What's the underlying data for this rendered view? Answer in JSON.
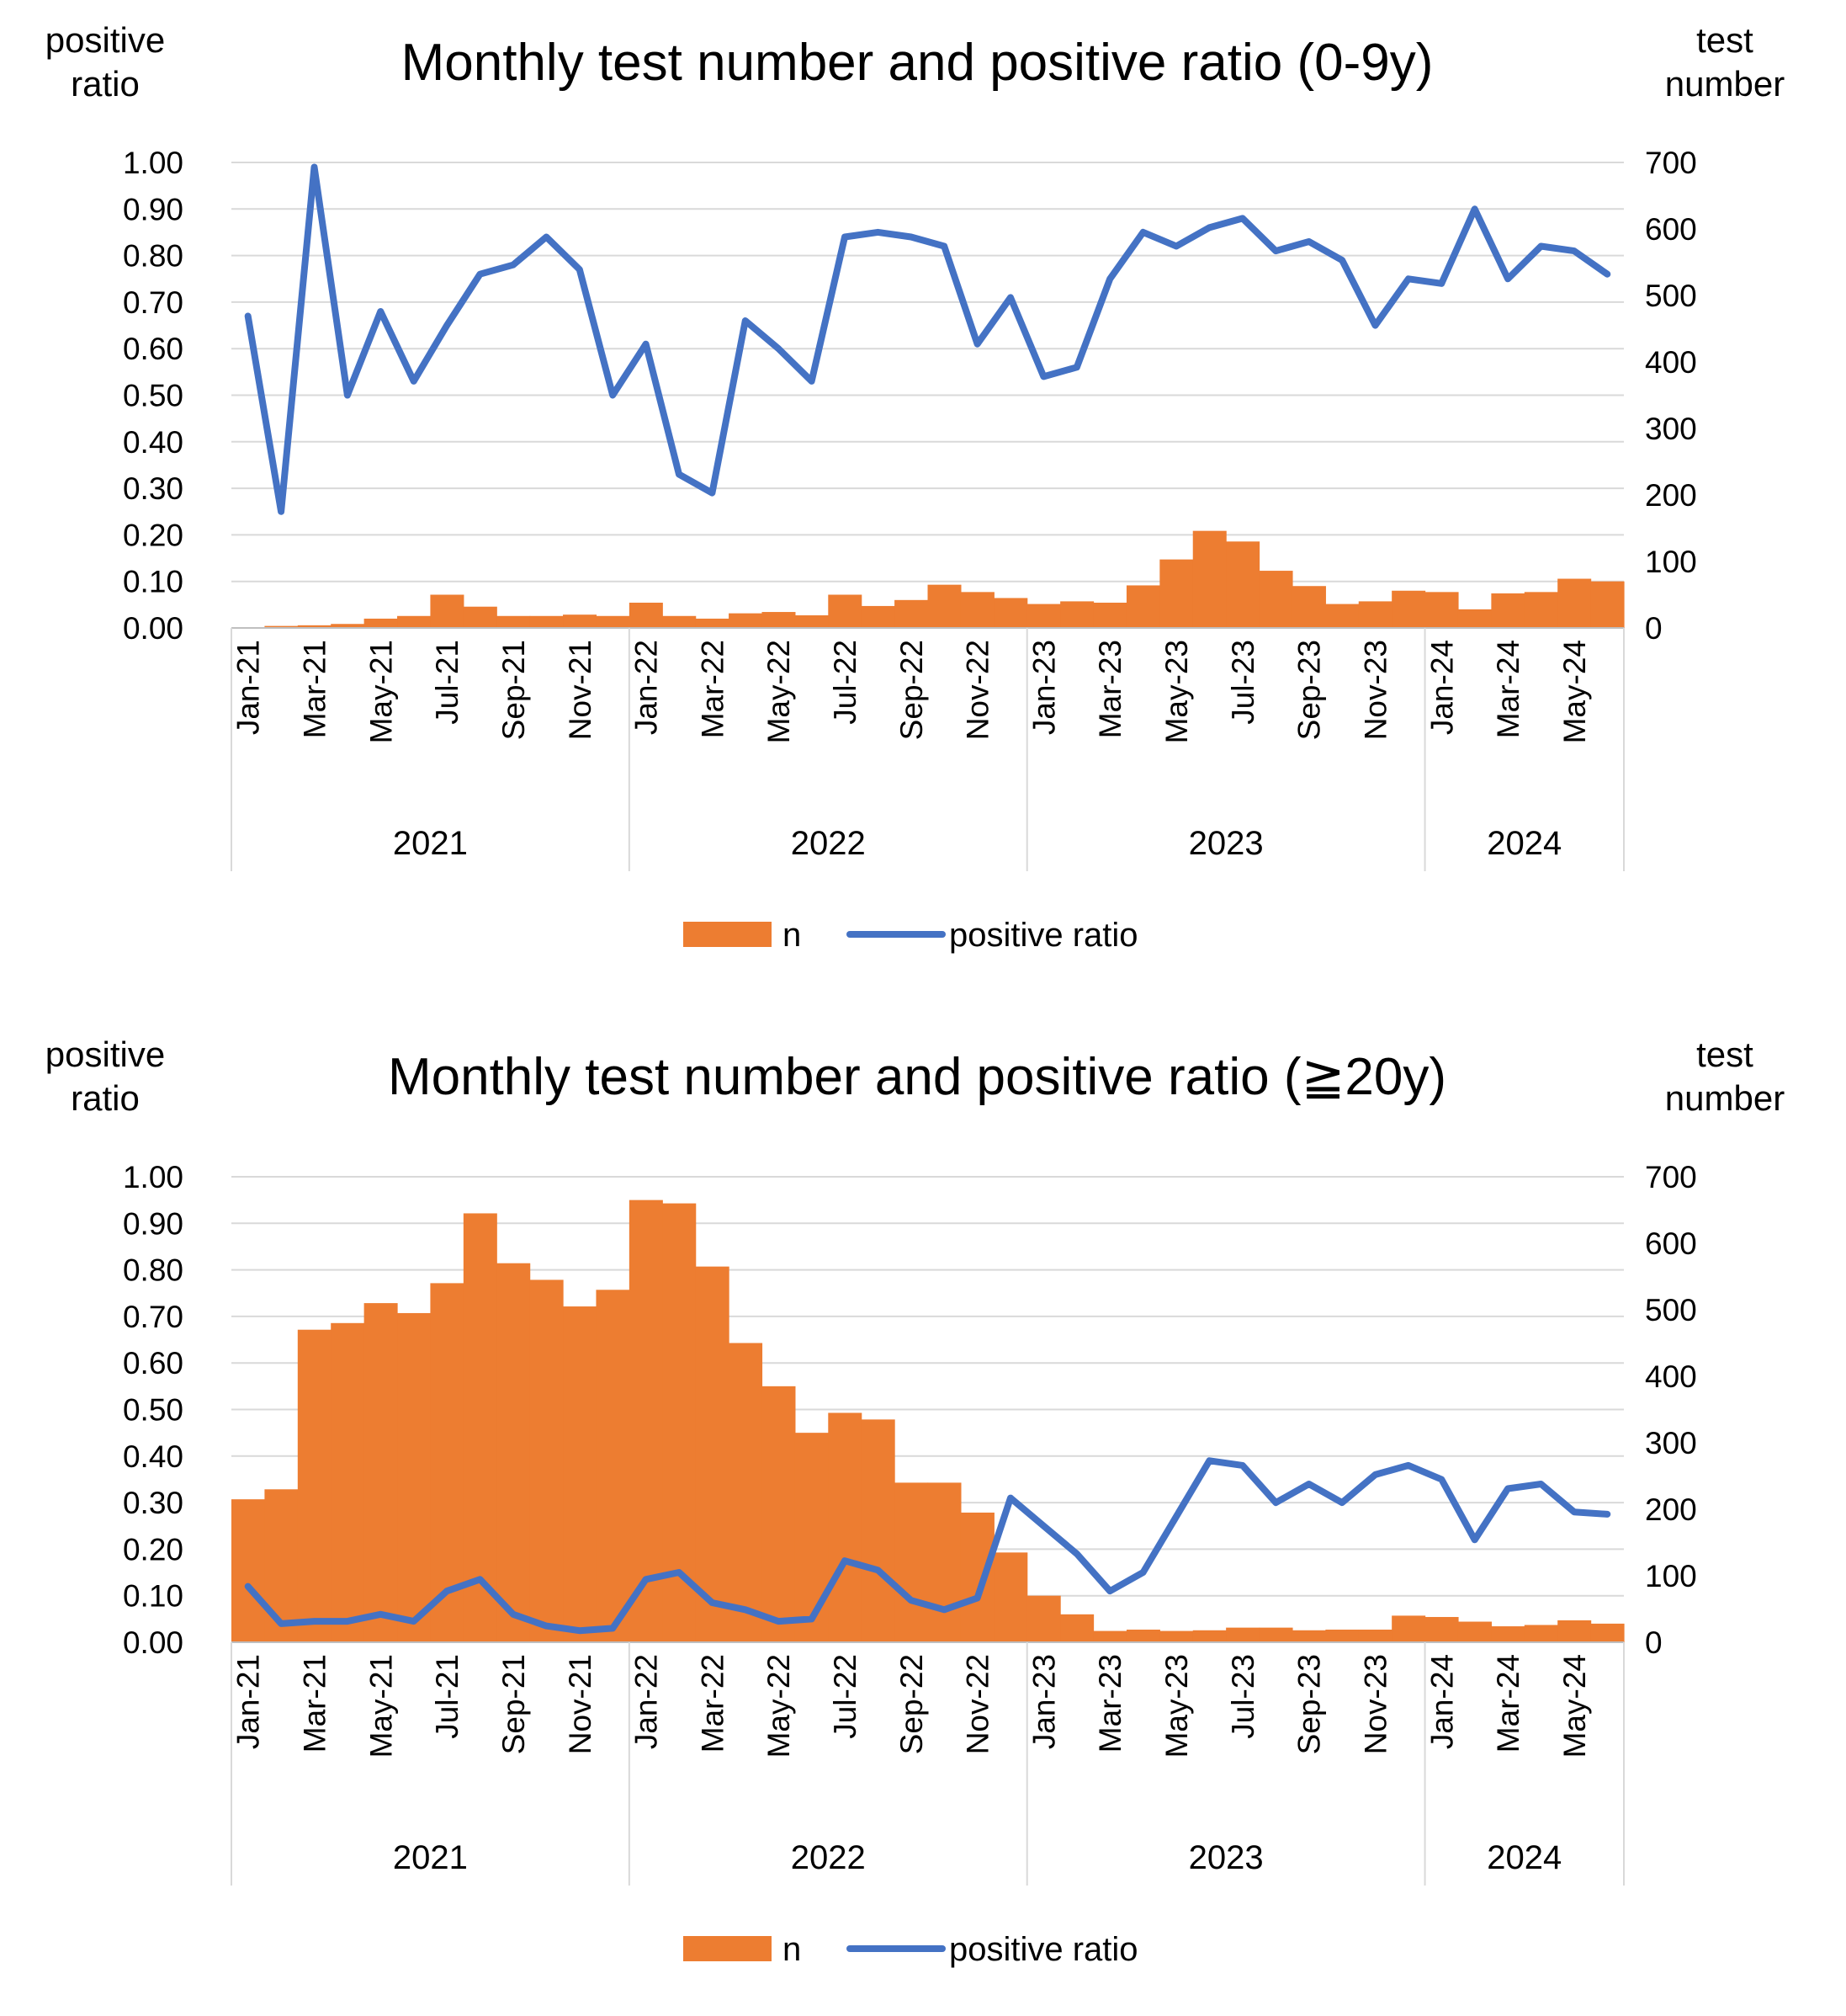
{
  "chart_data": [
    {
      "type": "bar+line",
      "title": "Monthly test number and positive ratio (0-9y)",
      "left_axis_label": [
        "positive",
        "ratio"
      ],
      "right_axis_label": [
        "test",
        "number"
      ],
      "left_ylim": [
        0,
        1
      ],
      "right_ylim": [
        0,
        700
      ],
      "left_ticks": [
        "0.00",
        "0.10",
        "0.20",
        "0.30",
        "0.40",
        "0.50",
        "0.60",
        "0.70",
        "0.80",
        "0.90",
        "1.00"
      ],
      "right_ticks": [
        "0",
        "100",
        "200",
        "300",
        "400",
        "500",
        "600",
        "700"
      ],
      "months": [
        "Jan-21",
        "Feb-21",
        "Mar-21",
        "Apr-21",
        "May-21",
        "Jun-21",
        "Jul-21",
        "Aug-21",
        "Sep-21",
        "Oct-21",
        "Nov-21",
        "Dec-21",
        "Jan-22",
        "Feb-22",
        "Mar-22",
        "Apr-22",
        "May-22",
        "Jun-22",
        "Jul-22",
        "Aug-22",
        "Sep-22",
        "Oct-22",
        "Nov-22",
        "Dec-22",
        "Jan-23",
        "Feb-23",
        "Mar-23",
        "Apr-23",
        "May-23",
        "Jun-23",
        "Jul-23",
        "Aug-23",
        "Sep-23",
        "Oct-23",
        "Nov-23",
        "Dec-23",
        "Jan-24",
        "Feb-24",
        "Mar-24",
        "Apr-24",
        "May-24",
        "Jun-24"
      ],
      "month_labels": [
        "Jan-21",
        "Mar-21",
        "May-21",
        "Jul-21",
        "Sep-21",
        "Nov-21",
        "Jan-22",
        "Mar-22",
        "May-22",
        "Jul-22",
        "Sep-22",
        "Nov-22",
        "Jan-23",
        "Mar-23",
        "May-23",
        "Jul-23",
        "Sep-23",
        "Nov-23",
        "Jan-24",
        "Mar-24",
        "May-24"
      ],
      "years": [
        {
          "label": "2021",
          "count": 12
        },
        {
          "label": "2022",
          "count": 12
        },
        {
          "label": "2023",
          "count": 12
        },
        {
          "label": "2024",
          "count": 6
        }
      ],
      "series": [
        {
          "name": "n",
          "kind": "bar",
          "color": "#ED7D31",
          "values": [
            1,
            3,
            4,
            6,
            14,
            18,
            50,
            32,
            18,
            18,
            20,
            18,
            38,
            18,
            14,
            22,
            24,
            19,
            50,
            33,
            42,
            65,
            54,
            45,
            36,
            40,
            38,
            64,
            103,
            146,
            130,
            86,
            63,
            36,
            40,
            56,
            54,
            28,
            52,
            54,
            74,
            70
          ]
        },
        {
          "name": "positive ratio",
          "kind": "line",
          "color": "#4472C4",
          "values": [
            0.67,
            0.25,
            0.99,
            0.5,
            0.68,
            0.53,
            0.65,
            0.76,
            0.78,
            0.84,
            0.77,
            0.5,
            0.61,
            0.33,
            0.29,
            0.66,
            0.6,
            0.53,
            0.84,
            0.85,
            0.84,
            0.82,
            0.61,
            0.71,
            0.54,
            0.56,
            0.75,
            0.85,
            0.82,
            0.86,
            0.88,
            0.81,
            0.83,
            0.79,
            0.65,
            0.75,
            0.74,
            0.9,
            0.75,
            0.82,
            0.81,
            0.76
          ]
        }
      ],
      "legend": [
        {
          "label": "n",
          "color": "#ED7D31",
          "kind": "bar"
        },
        {
          "label": "positive ratio",
          "color": "#4472C4",
          "kind": "line"
        }
      ],
      "grid": true,
      "legend_position": "bottom-center"
    },
    {
      "type": "bar+line",
      "title": "Monthly test number and positive ratio (≧20y)",
      "left_axis_label": [
        "positive",
        "ratio"
      ],
      "right_axis_label": [
        "test",
        "number"
      ],
      "left_ylim": [
        0,
        1
      ],
      "right_ylim": [
        0,
        700
      ],
      "left_ticks": [
        "0.00",
        "0.10",
        "0.20",
        "0.30",
        "0.40",
        "0.50",
        "0.60",
        "0.70",
        "0.80",
        "0.90",
        "1.00"
      ],
      "right_ticks": [
        "0",
        "100",
        "200",
        "300",
        "400",
        "500",
        "600",
        "700"
      ],
      "months": [
        "Jan-21",
        "Feb-21",
        "Mar-21",
        "Apr-21",
        "May-21",
        "Jun-21",
        "Jul-21",
        "Aug-21",
        "Sep-21",
        "Oct-21",
        "Nov-21",
        "Dec-21",
        "Jan-22",
        "Feb-22",
        "Mar-22",
        "Apr-22",
        "May-22",
        "Jun-22",
        "Jul-22",
        "Aug-22",
        "Sep-22",
        "Oct-22",
        "Nov-22",
        "Dec-22",
        "Jan-23",
        "Feb-23",
        "Mar-23",
        "Apr-23",
        "May-23",
        "Jun-23",
        "Jul-23",
        "Aug-23",
        "Sep-23",
        "Oct-23",
        "Nov-23",
        "Dec-23",
        "Jan-24",
        "Feb-24",
        "Mar-24",
        "Apr-24",
        "May-24",
        "Jun-24"
      ],
      "month_labels": [
        "Jan-21",
        "Mar-21",
        "May-21",
        "Jul-21",
        "Sep-21",
        "Nov-21",
        "Jan-22",
        "Mar-22",
        "May-22",
        "Jul-22",
        "Sep-22",
        "Nov-22",
        "Jan-23",
        "Mar-23",
        "May-23",
        "Jul-23",
        "Sep-23",
        "Nov-23",
        "Jan-24",
        "Mar-24",
        "May-24"
      ],
      "years": [
        {
          "label": "2021",
          "count": 12
        },
        {
          "label": "2022",
          "count": 12
        },
        {
          "label": "2023",
          "count": 12
        },
        {
          "label": "2024",
          "count": 6
        }
      ],
      "series": [
        {
          "name": "n",
          "kind": "bar",
          "color": "#ED7D31",
          "values": [
            215,
            230,
            470,
            480,
            510,
            495,
            540,
            645,
            570,
            545,
            505,
            530,
            665,
            660,
            565,
            450,
            385,
            315,
            345,
            335,
            240,
            240,
            195,
            135,
            70,
            42,
            17,
            19,
            17,
            18,
            22,
            22,
            18,
            19,
            19,
            40,
            38,
            31,
            24,
            26,
            33,
            28
          ]
        },
        {
          "name": "positive ratio",
          "kind": "line",
          "color": "#4472C4",
          "values": [
            0.12,
            0.04,
            0.045,
            0.045,
            0.06,
            0.045,
            0.11,
            0.135,
            0.06,
            0.035,
            0.025,
            0.03,
            0.135,
            0.15,
            0.085,
            0.07,
            0.045,
            0.05,
            0.175,
            0.155,
            0.09,
            0.07,
            0.095,
            0.31,
            0.25,
            0.19,
            0.11,
            0.15,
            0.27,
            0.39,
            0.38,
            0.3,
            0.34,
            0.3,
            0.36,
            0.38,
            0.35,
            0.22,
            0.33,
            0.34,
            0.28,
            0.275
          ]
        }
      ],
      "legend": [
        {
          "label": "n",
          "color": "#ED7D31",
          "kind": "bar"
        },
        {
          "label": "positive ratio",
          "color": "#4472C4",
          "kind": "line"
        }
      ],
      "grid": true,
      "legend_position": "bottom-center"
    }
  ]
}
